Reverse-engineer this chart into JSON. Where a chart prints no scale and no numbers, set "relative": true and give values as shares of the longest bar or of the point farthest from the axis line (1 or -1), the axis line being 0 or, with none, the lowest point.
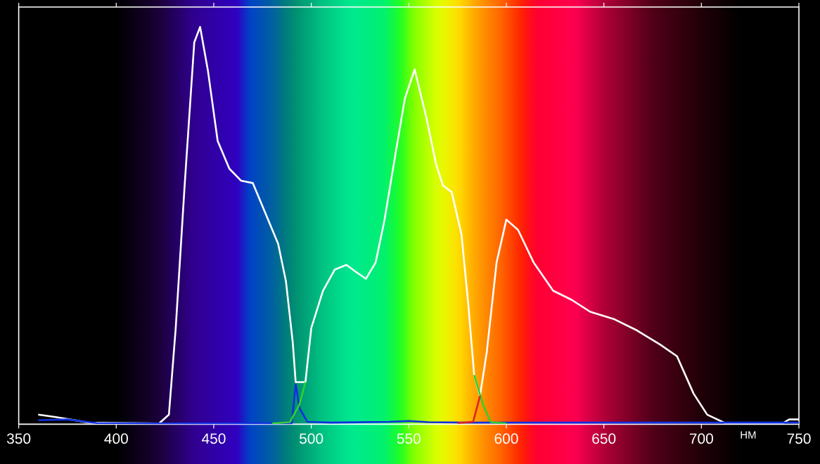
{
  "chart_data": {
    "type": "line",
    "xlabel": "НМ",
    "relative": true,
    "xlim": [
      350,
      750
    ],
    "xticks": [
      350,
      400,
      450,
      500,
      550,
      600,
      650,
      700,
      750
    ],
    "series": [
      {
        "color": "#ffffff",
        "x": [
          360,
          369,
          386,
          422,
          427,
          430.5,
          435,
          440,
          443,
          447,
          452,
          458,
          464,
          470,
          477,
          483,
          487,
          490.5,
          492,
          497,
          500,
          506,
          512,
          518,
          523,
          528,
          533,
          537.5,
          543.5,
          548,
          553,
          559,
          564,
          567.5,
          572,
          577,
          580.5,
          583.5,
          586.5,
          590,
          595,
          600,
          606,
          614,
          624,
          633.5,
          643,
          655,
          667,
          679,
          687.5,
          696,
          703,
          712.5,
          741.5,
          745,
          750
        ],
        "values": [
          0.024,
          0.018,
          0.004,
          0.002,
          0.024,
          0.242,
          0.596,
          0.961,
          1,
          0.89,
          0.713,
          0.643,
          0.613,
          0.607,
          0.525,
          0.454,
          0.36,
          0.206,
          0.106,
          0.106,
          0.242,
          0.336,
          0.389,
          0.401,
          0.383,
          0.366,
          0.407,
          0.513,
          0.69,
          0.82,
          0.893,
          0.772,
          0.654,
          0.601,
          0.584,
          0.478,
          0.301,
          0.124,
          0.071,
          0.183,
          0.407,
          0.515,
          0.489,
          0.407,
          0.336,
          0.313,
          0.283,
          0.265,
          0.236,
          0.2,
          0.171,
          0.077,
          0.024,
          0.002,
          0.002,
          0.012,
          0.012
        ]
      },
      {
        "color": "#1030e0",
        "x": [
          360,
          375,
          390,
          420,
          490,
          492,
          494,
          498,
          510,
          540,
          550,
          560,
          580,
          750
        ],
        "values": [
          0.01,
          0.012,
          0.003,
          0.002,
          0.002,
          0.1,
          0.04,
          0.006,
          0.004,
          0.006,
          0.008,
          0.005,
          0.004,
          0.004
        ]
      },
      {
        "color": "#30d030",
        "x": [
          480,
          489,
          494,
          497,
          540,
          583.5,
          588,
          592,
          600
        ],
        "values": [
          0.002,
          0.005,
          0.05,
          0.106,
          null,
          0.124,
          0.05,
          0.005,
          0.002
        ]
      },
      {
        "color": "#e02020",
        "x": [
          575,
          583,
          586.5
        ],
        "values": [
          0.003,
          0.006,
          0.071
        ]
      }
    ]
  }
}
